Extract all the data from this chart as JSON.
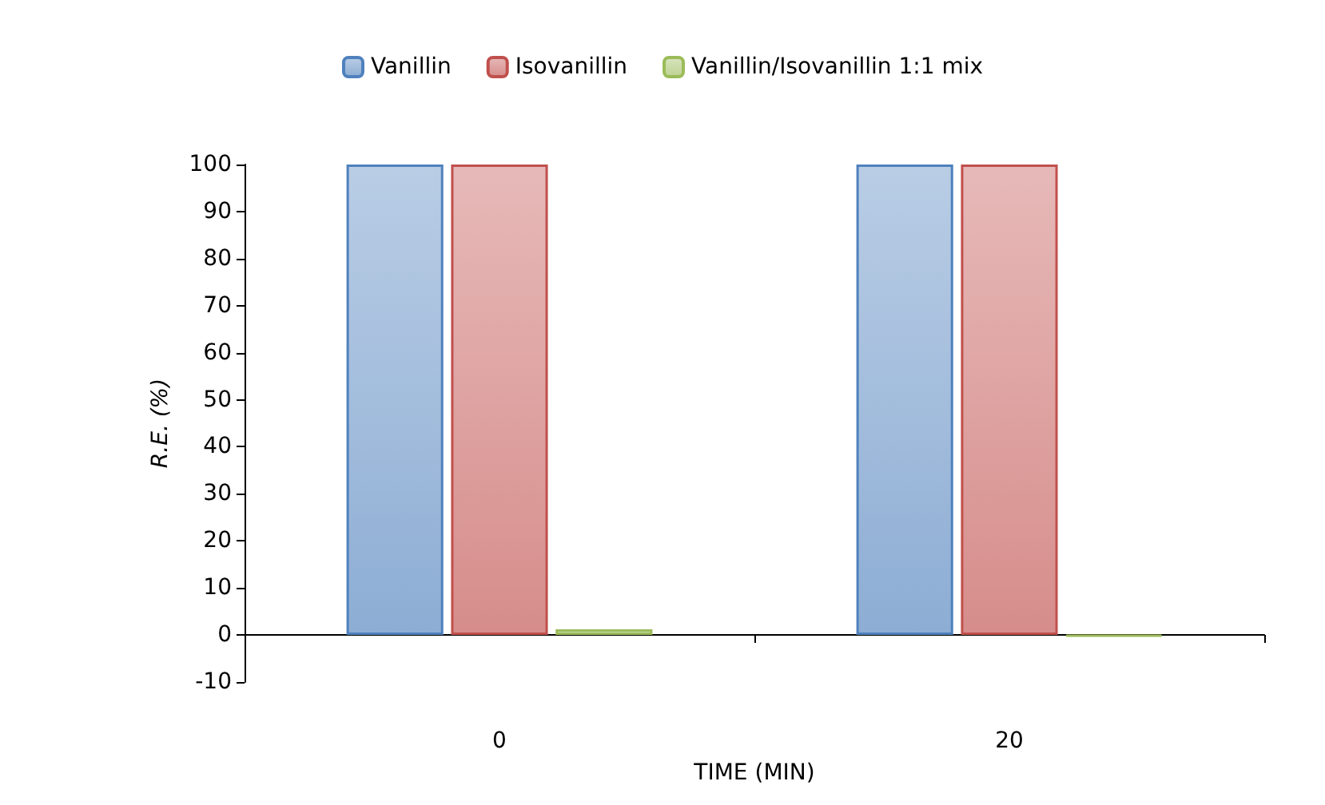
{
  "chart_data": {
    "type": "bar",
    "xlabel": "TIME (MIN)",
    "ylabel": "R.E. (%)",
    "categories": [
      "0",
      "20"
    ],
    "series": [
      {
        "name": "Vanillin",
        "color": "#4f81bd",
        "values": [
          100,
          100
        ]
      },
      {
        "name": "Isovanillin",
        "color": "#c0504d",
        "values": [
          100,
          100
        ]
      },
      {
        "name": "Vanillin/Isovanillin 1:1 mix",
        "color": "#9bbb59",
        "values": [
          1.2,
          -0.3
        ]
      }
    ],
    "ylim": [
      -10,
      100
    ],
    "yticks": [
      -10,
      0,
      10,
      20,
      30,
      40,
      50,
      60,
      70,
      80,
      90,
      100
    ],
    "legend": "top"
  }
}
